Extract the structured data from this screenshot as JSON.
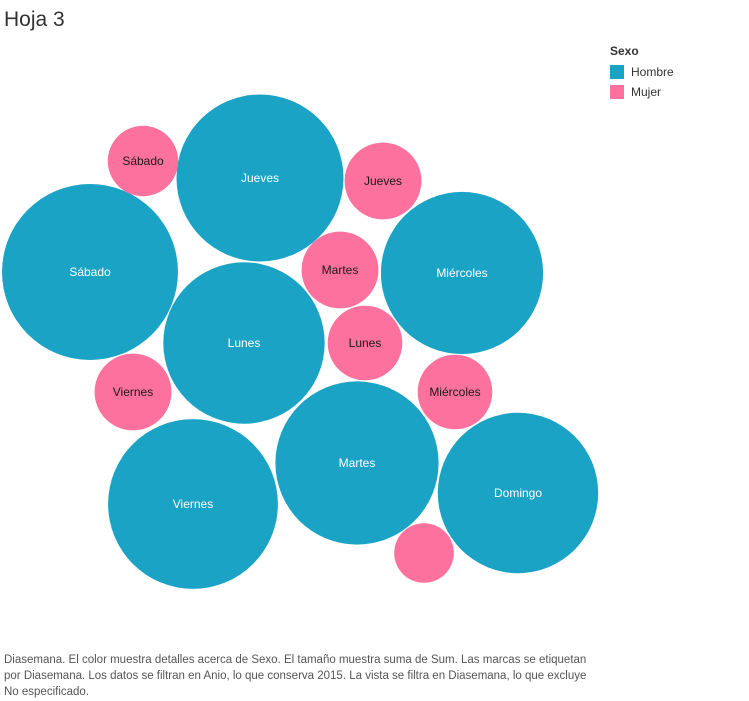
{
  "sheet": {
    "title": "Hoja 3"
  },
  "legend": {
    "title": "Sexo",
    "items": [
      {
        "label": "Hombre",
        "color": "#1ba3c6"
      },
      {
        "label": "Mujer",
        "color": "#fc719e"
      }
    ]
  },
  "chart_data": {
    "type": "bubble",
    "size_measure": "Sum",
    "color_field": "Sexo",
    "label_field": "Diasemana",
    "series": [
      {
        "name": "Hombre",
        "color": "#1ba3c6",
        "points": [
          {
            "label": "Sábado",
            "value": 100
          },
          {
            "label": "Jueves",
            "value": 90
          },
          {
            "label": "Miércoles",
            "value": 85
          },
          {
            "label": "Lunes",
            "value": 84
          },
          {
            "label": "Martes",
            "value": 86
          },
          {
            "label": "Viernes",
            "value": 93
          },
          {
            "label": "Domingo",
            "value": 83
          }
        ]
      },
      {
        "name": "Mujer",
        "color": "#fc719e",
        "points": [
          {
            "label": "Sábado",
            "value": 16
          },
          {
            "label": "Jueves",
            "value": 19
          },
          {
            "label": "Martes",
            "value": 19
          },
          {
            "label": "Lunes",
            "value": 18
          },
          {
            "label": "Viernes",
            "value": 19
          },
          {
            "label": "Miércoles",
            "value": 18
          },
          {
            "label": "",
            "value": 11.5
          }
        ]
      }
    ]
  },
  "caption": "Diasemana.  El color muestra detalles acerca de Sexo.  El tamaño muestra suma de Sum.  Las marcas se etiquetan por Diasemana. Los datos se filtran en Anio, lo que conserva 2015. La vista se filtra en Diasemana, lo que excluye No especificado."
}
